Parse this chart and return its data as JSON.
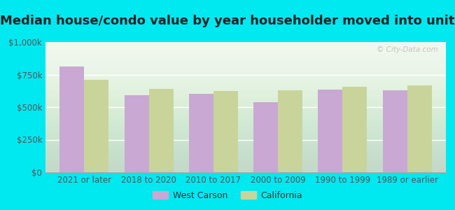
{
  "title": "Median house/condo value by year householder moved into unit",
  "categories": [
    "2021 or later",
    "2018 to 2020",
    "2010 to 2017",
    "2000 to 2009",
    "1990 to 1999",
    "1989 or earlier"
  ],
  "west_carson": [
    810000,
    590000,
    600000,
    535000,
    635000,
    630000
  ],
  "california": [
    710000,
    640000,
    625000,
    630000,
    655000,
    665000
  ],
  "bar_color_wc": "#c9a8d4",
  "bar_color_ca": "#c9d49a",
  "background_outer": "#00e8f0",
  "background_inner_top": "#f0f7ee",
  "background_inner_bot": "#d8edd8",
  "ylim": [
    0,
    1000000
  ],
  "yticks": [
    0,
    250000,
    500000,
    750000,
    1000000
  ],
  "ytick_labels": [
    "$0",
    "$250k",
    "$500k",
    "$750k",
    "$1,000k"
  ],
  "legend_labels": [
    "West Carson",
    "California"
  ],
  "watermark": "© City-Data.com",
  "title_fontsize": 13,
  "tick_fontsize": 8.5
}
